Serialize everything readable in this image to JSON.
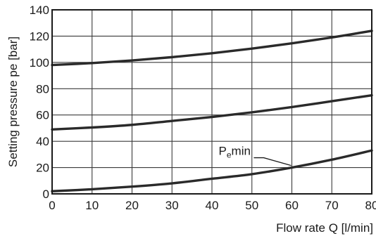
{
  "chart_data": {
    "type": "line",
    "xlabel": "Flow rate  Q [l/min]",
    "ylabel": "Setting pressure pe [bar]",
    "xlim": [
      0,
      80
    ],
    "ylim": [
      0,
      140
    ],
    "xticks": [
      0,
      10,
      20,
      30,
      40,
      50,
      60,
      70,
      80
    ],
    "yticks": [
      0,
      20,
      40,
      60,
      80,
      100,
      120,
      140
    ],
    "grid": true,
    "x": [
      0,
      10,
      20,
      30,
      40,
      50,
      60,
      70,
      80
    ],
    "series": [
      {
        "values": [
          98,
          99.5,
          101.5,
          104,
          107,
          110.5,
          114.5,
          119,
          124
        ]
      },
      {
        "values": [
          49,
          50.5,
          52.5,
          55.5,
          58.5,
          62,
          66,
          70.5,
          75
        ]
      },
      {
        "name": "Pemin",
        "values": [
          2,
          3.5,
          5.5,
          8,
          11.5,
          15,
          20,
          26,
          33
        ]
      }
    ],
    "annotations": [
      {
        "text": "P",
        "sub": "e",
        "suffix": "min",
        "series": 2,
        "x": 60
      }
    ],
    "line_color": "#2a2a2a"
  }
}
